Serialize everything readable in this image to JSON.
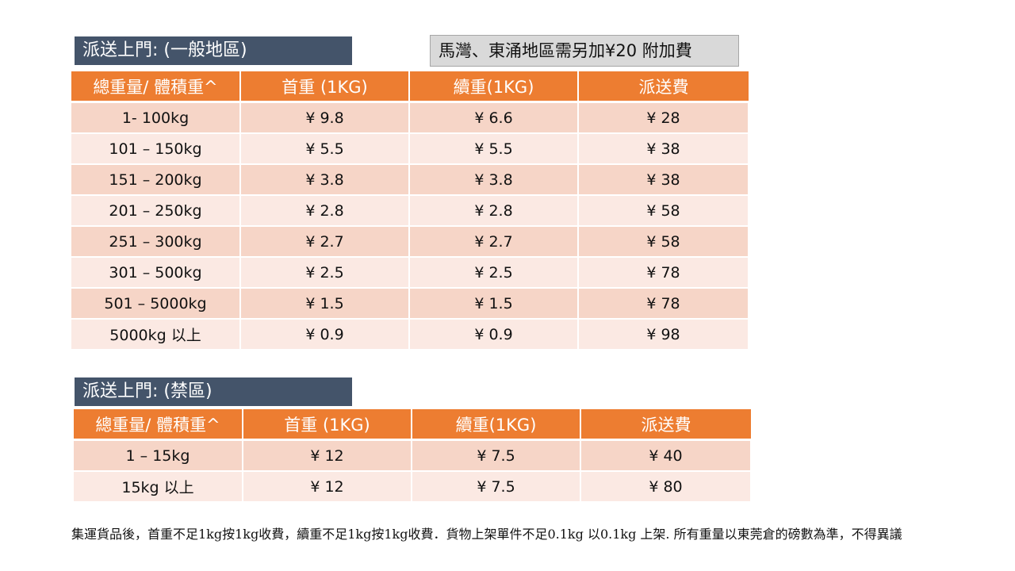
{
  "general": {
    "label": "派送上門: (一般地區)",
    "note": "馬灣、東涌地區需另加¥20 附加費",
    "headers": [
      "總重量/ 體積重^",
      "首重 (1KG)",
      "續重(1KG)",
      "派送費"
    ],
    "rows": [
      [
        "1- 100kg",
        "¥ 9.8",
        "¥ 6.6",
        "¥ 28"
      ],
      [
        "101 – 150kg",
        "¥ 5.5",
        "¥ 5.5",
        "¥ 38"
      ],
      [
        "151 – 200kg",
        "¥ 3.8",
        "¥ 3.8",
        "¥ 38"
      ],
      [
        "201 – 250kg",
        "¥ 2.8",
        "¥ 2.8",
        "¥ 58"
      ],
      [
        "251 – 300kg",
        "¥ 2.7",
        "¥ 2.7",
        "¥ 58"
      ],
      [
        "301 – 500kg",
        "¥ 2.5",
        "¥ 2.5",
        "¥ 78"
      ],
      [
        "501 – 5000kg",
        "¥ 1.5",
        "¥ 1.5",
        "¥ 78"
      ],
      [
        "5000kg 以上",
        "¥ 0.9",
        "¥ 0.9",
        "¥ 98"
      ]
    ]
  },
  "restricted": {
    "label": "派送上門: (禁區)",
    "headers": [
      "總重量/ 體積重^",
      "首重 (1KG)",
      "續重(1KG)",
      "派送費"
    ],
    "rows": [
      [
        "1 – 15kg",
        "¥ 12",
        "¥ 7.5",
        "¥ 40"
      ],
      [
        "15kg 以上",
        "¥ 12",
        "¥ 7.5",
        "¥ 80"
      ]
    ]
  },
  "footnote": "集運貨品後，首重不足1kg按1kg收費，續重不足1kg按1kg收費．貨物上架單件不足0.1kg 以0.1kg 上架. 所有重量以東莞倉的磅數為準，不得異議"
}
